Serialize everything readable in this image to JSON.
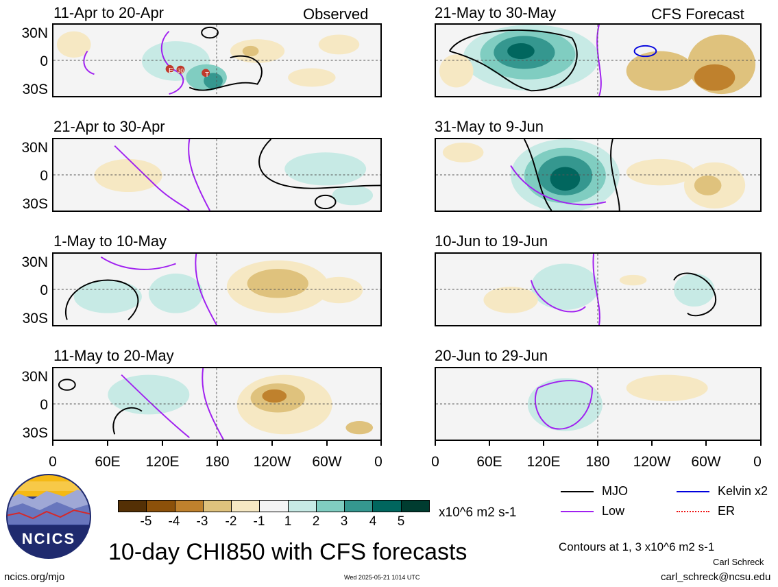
{
  "source": "Observed",
  "forecast_source": "CFS Forecast",
  "lat_labels": [
    "30N",
    "0",
    "30S"
  ],
  "lon_labels": [
    "0",
    "60E",
    "120E",
    "180",
    "120W",
    "60W",
    "0"
  ],
  "panels": [
    {
      "title": "11-Apr to 20-Apr",
      "group": "observed"
    },
    {
      "title": "21-Apr to 30-Apr",
      "group": "observed"
    },
    {
      "title": "1-May to 10-May",
      "group": "observed"
    },
    {
      "title": "11-May to 20-May",
      "group": "observed"
    },
    {
      "title": "21-May to 30-May",
      "group": "forecast"
    },
    {
      "title": "31-May to 9-Jun",
      "group": "forecast"
    },
    {
      "title": "10-Jun to 19-Jun",
      "group": "forecast"
    },
    {
      "title": "20-Jun to 29-Jun",
      "group": "forecast"
    }
  ],
  "tc_markers": [
    "E",
    "30",
    "T"
  ],
  "colorbar": {
    "labels": [
      "-5",
      "-4",
      "-3",
      "-2",
      "-1",
      "1",
      "2",
      "3",
      "4",
      "5"
    ],
    "colors": [
      "#543005",
      "#8c510a",
      "#bf812d",
      "#dfc27d",
      "#f6e8c3",
      "#f5f5f5",
      "#c7eae5",
      "#80cdc1",
      "#35978f",
      "#01665e",
      "#003c30"
    ],
    "units": "x10^6 m2 s-1"
  },
  "legend": [
    {
      "label": "MJO",
      "color": "#000000"
    },
    {
      "label": "Kelvin x2",
      "color": "#0000dd"
    },
    {
      "label": "Low",
      "color": "#a020f0"
    },
    {
      "label": "ER",
      "color": "#ee1111"
    }
  ],
  "main_title": "10-day CHI850 with CFS forecasts",
  "contours_note": "Contours at 1, 3 x10^6 m2 s-1",
  "author": "Carl Schreck",
  "email": "carl_schreck@ncsu.edu",
  "site": "ncics.org/mjo",
  "timestamp": "Wed 2025-05-21 1014 UTC",
  "logo_text": "NCICS"
}
